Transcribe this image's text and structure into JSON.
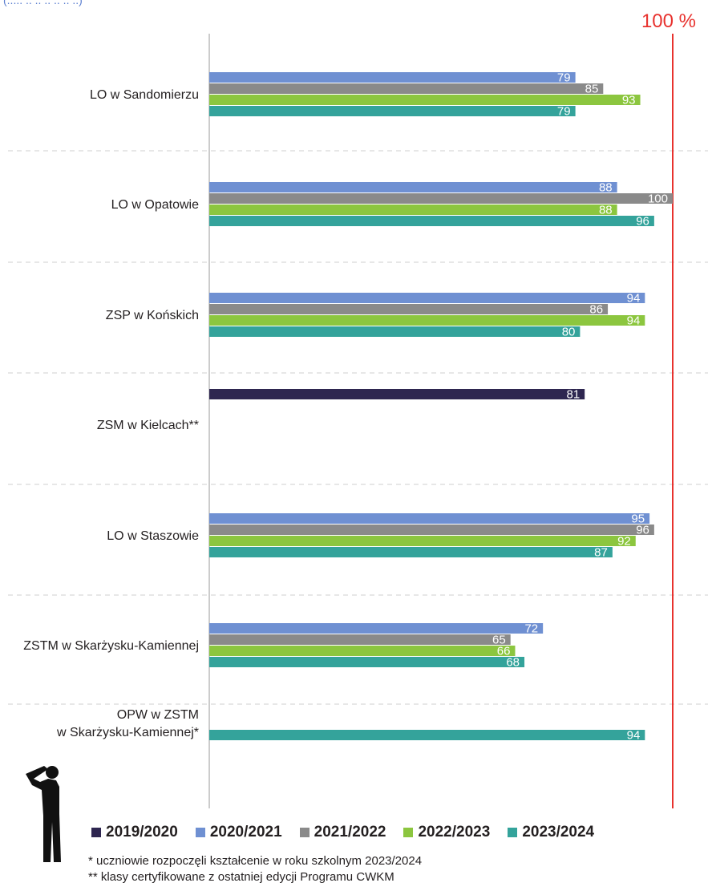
{
  "header_snippet": "(.....   ..    ..  ..  ..   ..   ..)",
  "reference_label": "100 %",
  "colors": {
    "series_2019_2020": "#2e2650",
    "series_2020_2021": "#6f90d2",
    "series_2021_2022": "#8a8a8a",
    "series_2022_2023": "#8cc63f",
    "series_2023_2024": "#34a39b",
    "reference_line": "#e8322e"
  },
  "legend": {
    "items": [
      {
        "label": "2019/2020",
        "color": "#2e2650"
      },
      {
        "label": "2020/2021",
        "color": "#6f90d2"
      },
      {
        "label": "2021/2022",
        "color": "#8a8a8a"
      },
      {
        "label": "2022/2023",
        "color": "#8cc63f"
      },
      {
        "label": "2023/2024",
        "color": "#34a39b"
      }
    ]
  },
  "notes": {
    "note1": "*  uczniowie rozpoczęli kształcenie w roku szkolnym 2023/2024",
    "note2": "** klasy certyfikowane z ostatniej edycji Programu CWKM"
  },
  "icons": {
    "soldier": "saluting-soldier-silhouette-icon"
  },
  "chart_data": {
    "type": "bar",
    "orientation": "horizontal",
    "xlim": [
      0,
      100
    ],
    "reference_line": 100,
    "grid": false,
    "legend_position": "bottom",
    "categories": [
      [
        "LO w Sandomierzu"
      ],
      [
        "LO w Opatowie"
      ],
      [
        "ZSP w Końskich"
      ],
      [
        "ZSM w Kielcach**"
      ],
      [
        "LO w Staszowie"
      ],
      [
        "ZSTM w Skarżysku-Kamiennej"
      ],
      [
        "OPW w ZSTM",
        "w Skarżysku-Kamiennej*"
      ]
    ],
    "series": [
      {
        "name": "2019/2020",
        "values": [
          null,
          null,
          null,
          81,
          null,
          null,
          null
        ]
      },
      {
        "name": "2020/2021",
        "values": [
          79,
          88,
          94,
          null,
          95,
          72,
          null
        ]
      },
      {
        "name": "2021/2022",
        "values": [
          85,
          100,
          86,
          null,
          96,
          65,
          null
        ]
      },
      {
        "name": "2022/2023",
        "values": [
          93,
          88,
          94,
          null,
          92,
          66,
          null
        ]
      },
      {
        "name": "2023/2024",
        "values": [
          79,
          96,
          80,
          null,
          87,
          68,
          94
        ]
      }
    ]
  }
}
